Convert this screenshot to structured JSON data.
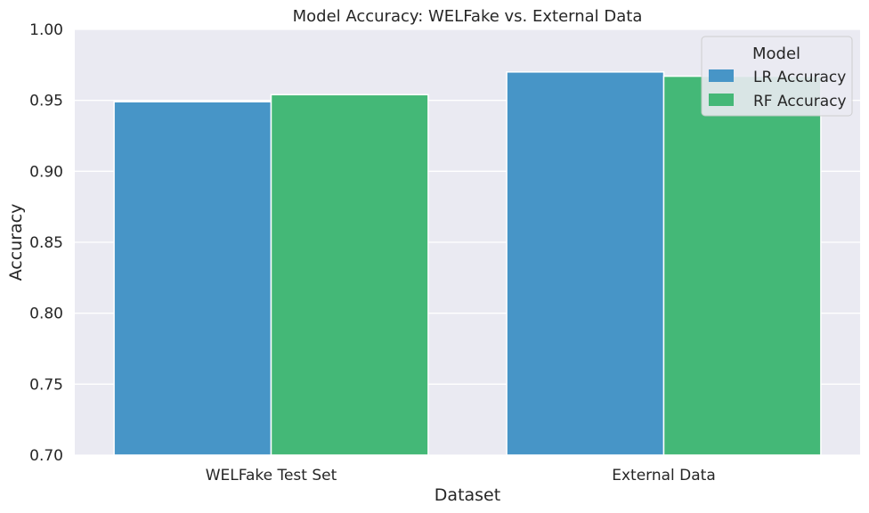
{
  "chart_data": {
    "type": "bar",
    "title": "Model Accuracy: WELFake vs. External Data",
    "xlabel": "Dataset",
    "ylabel": "Accuracy",
    "categories": [
      "WELFake Test Set",
      "External Data"
    ],
    "series": [
      {
        "name": "LR Accuracy",
        "values": [
          0.949,
          0.97
        ],
        "color": "#4795c7"
      },
      {
        "name": "RF Accuracy",
        "values": [
          0.954,
          0.967
        ],
        "color": "#44b877"
      }
    ],
    "ylim": [
      0.7,
      1.0
    ],
    "yticks": [
      "0.70",
      "0.75",
      "0.80",
      "0.85",
      "0.90",
      "0.95",
      "1.00"
    ],
    "grid": true,
    "legend": {
      "title": "Model",
      "placement": "top-right"
    },
    "background_color": "#eaeaf2"
  }
}
